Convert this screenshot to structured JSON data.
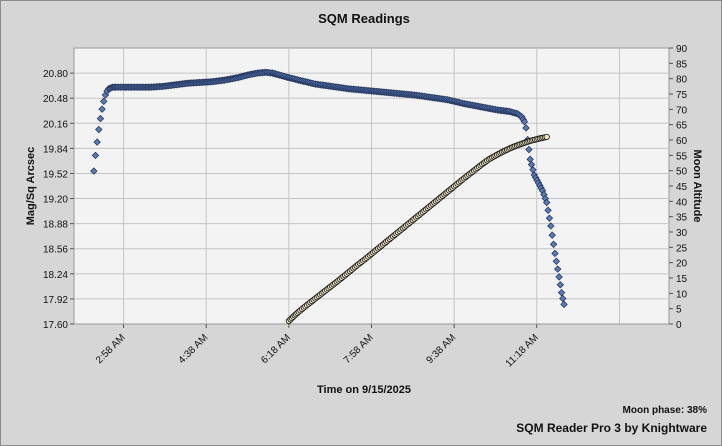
{
  "chart_data": {
    "type": "scatter",
    "title": "SQM Readings",
    "xlabel": "Time on 9/15/2025",
    "ylabel": "Mag/Sq Arcsec",
    "y2label": "Moon Altitude",
    "x_unit": "minutes after 12:00 AM on 9/15/2025",
    "xlim": [
      118,
      838
    ],
    "ylim": [
      17.6,
      21.12
    ],
    "y2lim": [
      0,
      90
    ],
    "x_ticks": [
      {
        "value": 178,
        "label": "2:58 AM"
      },
      {
        "value": 278,
        "label": "4:38 AM"
      },
      {
        "value": 378,
        "label": "6:18 AM"
      },
      {
        "value": 478,
        "label": "7:58 AM"
      },
      {
        "value": 578,
        "label": "9:38 AM"
      },
      {
        "value": 678,
        "label": "11:18 AM"
      }
    ],
    "x_grid": [
      178,
      278,
      378,
      478,
      578,
      678,
      778
    ],
    "y_ticks": [
      "17.60",
      "17.92",
      "18.24",
      "18.56",
      "18.88",
      "19.20",
      "19.52",
      "19.84",
      "20.16",
      "20.48",
      "20.80"
    ],
    "y2_ticks": [
      "0",
      "5",
      "10",
      "15",
      "20",
      "25",
      "30",
      "35",
      "40",
      "45",
      "50",
      "55",
      "60",
      "65",
      "70",
      "75",
      "80",
      "85",
      "90"
    ],
    "grid": true,
    "series": [
      {
        "name": "",
        "axis": "left",
        "color": "#5b7bb5",
        "marker": "diamond",
        "points": [
          [
            142,
            19.55
          ],
          [
            144,
            19.75
          ],
          [
            146,
            19.92
          ],
          [
            148,
            20.08
          ],
          [
            150,
            20.22
          ],
          [
            152,
            20.34
          ],
          [
            154,
            20.44
          ],
          [
            156,
            20.52
          ],
          [
            158,
            20.57
          ],
          [
            160,
            20.6
          ],
          [
            165,
            20.62
          ],
          [
            170,
            20.62
          ],
          [
            180,
            20.62
          ],
          [
            195,
            20.62
          ],
          [
            210,
            20.62
          ],
          [
            225,
            20.63
          ],
          [
            240,
            20.65
          ],
          [
            255,
            20.67
          ],
          [
            270,
            20.68
          ],
          [
            285,
            20.69
          ],
          [
            300,
            20.71
          ],
          [
            315,
            20.74
          ],
          [
            330,
            20.78
          ],
          [
            340,
            20.8
          ],
          [
            350,
            20.81
          ],
          [
            358,
            20.8
          ],
          [
            365,
            20.78
          ],
          [
            375,
            20.75
          ],
          [
            390,
            20.71
          ],
          [
            410,
            20.66
          ],
          [
            430,
            20.63
          ],
          [
            450,
            20.6
          ],
          [
            470,
            20.58
          ],
          [
            490,
            20.56
          ],
          [
            510,
            20.54
          ],
          [
            530,
            20.52
          ],
          [
            550,
            20.49
          ],
          [
            570,
            20.46
          ],
          [
            590,
            20.41
          ],
          [
            610,
            20.37
          ],
          [
            630,
            20.33
          ],
          [
            645,
            20.31
          ],
          [
            655,
            20.28
          ],
          [
            660,
            20.24
          ],
          [
            663,
            20.18
          ],
          [
            665,
            20.1
          ],
          [
            667,
            19.95
          ],
          [
            670,
            19.7
          ],
          [
            675,
            19.5
          ],
          [
            680,
            19.4
          ],
          [
            685,
            19.3
          ],
          [
            690,
            19.15
          ],
          [
            695,
            18.85
          ],
          [
            700,
            18.5
          ],
          [
            705,
            18.2
          ],
          [
            708,
            18.0
          ],
          [
            711,
            17.85
          ]
        ]
      },
      {
        "name": "",
        "axis": "right",
        "color": "#f3e9c6",
        "marker": "circle",
        "points": [
          [
            378,
            1
          ],
          [
            380,
            1.5
          ],
          [
            385,
            2.8
          ],
          [
            390,
            4
          ],
          [
            400,
            6.2
          ],
          [
            410,
            8.3
          ],
          [
            420,
            10.4
          ],
          [
            430,
            12.5
          ],
          [
            440,
            14.6
          ],
          [
            450,
            16.8
          ],
          [
            460,
            19
          ],
          [
            470,
            21.1
          ],
          [
            480,
            23.3
          ],
          [
            490,
            25.5
          ],
          [
            500,
            27.7
          ],
          [
            510,
            29.9
          ],
          [
            520,
            32.1
          ],
          [
            530,
            34.3
          ],
          [
            540,
            36.5
          ],
          [
            550,
            38.7
          ],
          [
            560,
            40.9
          ],
          [
            570,
            43.1
          ],
          [
            580,
            45.3
          ],
          [
            590,
            47.5
          ],
          [
            600,
            49.6
          ],
          [
            610,
            51.7
          ],
          [
            620,
            53.7
          ],
          [
            630,
            55.2
          ],
          [
            640,
            56.6
          ],
          [
            650,
            57.8
          ],
          [
            660,
            58.8
          ],
          [
            670,
            59.7
          ],
          [
            680,
            60.4
          ],
          [
            690,
            61
          ]
        ]
      }
    ],
    "footer": {
      "moon_phase": "Moon phase: 38%",
      "branding": "SQM Reader Pro 3 by Knightware"
    }
  }
}
